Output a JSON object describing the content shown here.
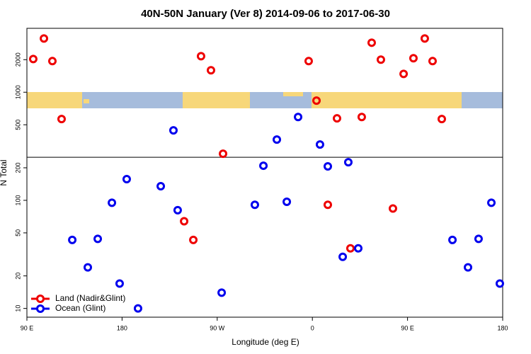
{
  "chart_data": {
    "type": "scatter",
    "title": "40N-50N January (Ver 8)   2014-09-06 to 2017-06-30",
    "x_label": "Longitude (deg E)",
    "y_label": "N Total",
    "xlim": [
      90,
      540
    ],
    "xticks": [
      {
        "value": 90,
        "label": "90 E"
      },
      180,
      {
        "value": 270,
        "label": "90 W"
      },
      {
        "value": 360,
        "label": "0"
      },
      {
        "value": 450,
        "label": "90 E"
      },
      {
        "value": 540,
        "label": "180"
      }
    ],
    "ylim": [
      8.3,
      3900
    ],
    "yticks": [
      10,
      20,
      50,
      100,
      200,
      500,
      1000,
      2000
    ],
    "log_y": true,
    "reference_line": 250,
    "legend": "lower left",
    "series": [
      {
        "name": "Land (Nadir&Glint)",
        "color": "#ee0000",
        "x": [
          96.0,
          106.1,
          114.1,
          122.8,
          254.7,
          264.1,
          275.5,
          356.5,
          363.9,
          383.3,
          406.7,
          416.1,
          424.8,
          446.3,
          455.6,
          466.3,
          473.7,
          482.4,
          238.7,
          247.4,
          374.6,
          396.0,
          436.2
        ],
        "values": [
          2028,
          3140,
          1940,
          565,
          2154,
          1597,
          270,
          1940,
          836,
          573,
          590,
          2871,
          2000,
          1478,
          2061,
          3140,
          1940,
          565,
          64,
          43,
          91,
          36,
          84
        ]
      },
      {
        "name": "Ocean (Glint)",
        "color": "#0000ee",
        "x": [
          132.9,
          147.6,
          157.0,
          170.4,
          177.7,
          184.4,
          195.1,
          216.6,
          228.6,
          232.6,
          274.2,
          305.6,
          313.7,
          326.4,
          335.8,
          346.5,
          367.2,
          374.6,
          388.7,
          394.0,
          403.4,
          492.5,
          507.2,
          517.2,
          529.3,
          537.3
        ],
        "values": [
          43,
          24,
          44,
          95,
          17,
          157,
          10,
          135,
          444,
          81,
          14,
          91,
          209,
          365,
          97,
          590,
          328,
          206,
          30,
          225,
          36,
          43,
          24,
          44,
          95,
          17
        ]
      }
    ]
  }
}
